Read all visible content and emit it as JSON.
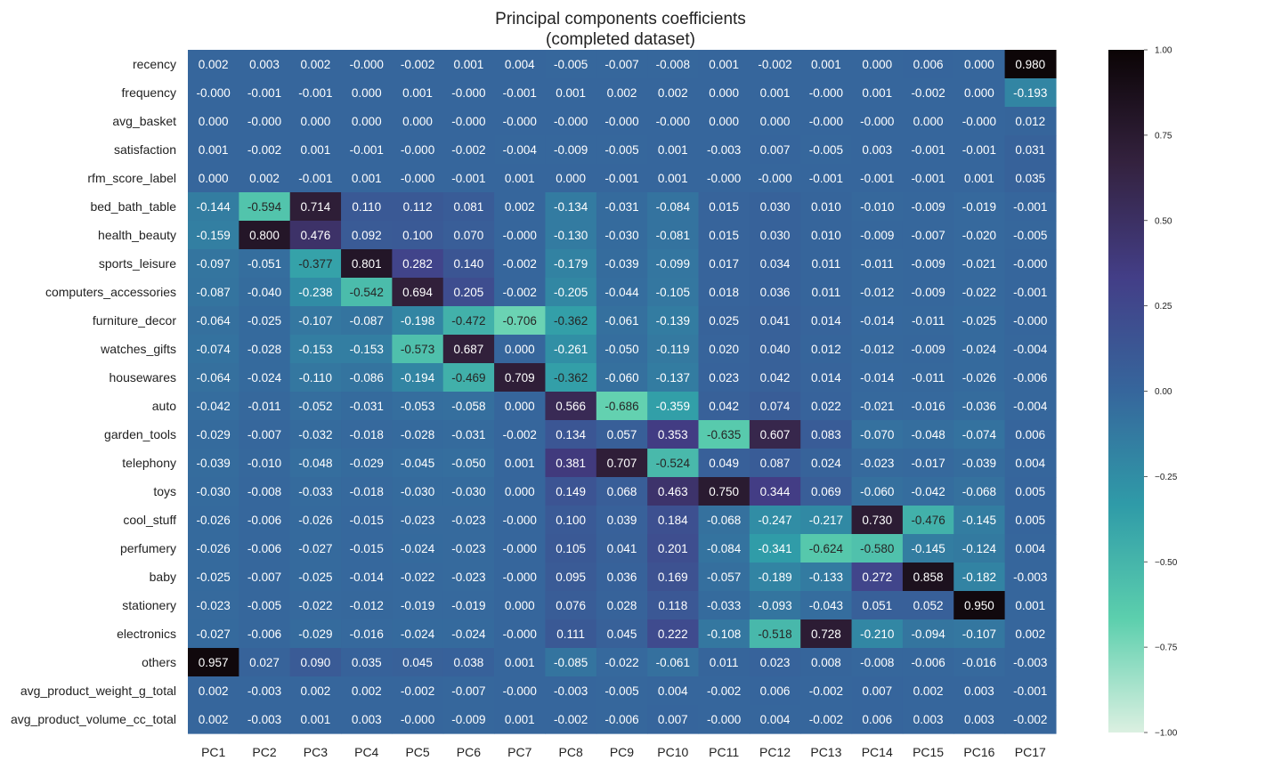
{
  "chart_data": {
    "type": "heatmap",
    "title": [
      "Principal components coefficients",
      "(completed dataset)"
    ],
    "columns": [
      "PC1",
      "PC2",
      "PC3",
      "PC4",
      "PC5",
      "PC6",
      "PC7",
      "PC8",
      "PC9",
      "PC10",
      "PC11",
      "PC12",
      "PC13",
      "PC14",
      "PC15",
      "PC16",
      "PC17"
    ],
    "rows": [
      "recency",
      "frequency",
      "avg_basket",
      "satisfaction",
      "rfm_score_label",
      "bed_bath_table",
      "health_beauty",
      "sports_leisure",
      "computers_accessories",
      "furniture_decor",
      "watches_gifts",
      "housewares",
      "auto",
      "garden_tools",
      "telephony",
      "toys",
      "cool_stuff",
      "perfumery",
      "baby",
      "stationery",
      "electronics",
      "others",
      "avg_product_weight_g_total",
      "avg_product_volume_cc_total"
    ],
    "values": [
      [
        0.002,
        0.003,
        0.002,
        -0.0,
        -0.002,
        0.001,
        0.004,
        -0.005,
        -0.007,
        -0.008,
        0.001,
        -0.002,
        0.001,
        0.0,
        0.006,
        0.0,
        0.98
      ],
      [
        -0.0,
        -0.001,
        -0.001,
        0.0,
        0.001,
        -0.0,
        -0.001,
        0.001,
        0.002,
        0.002,
        0.0,
        0.001,
        -0.0,
        0.001,
        -0.002,
        0.0,
        -0.193
      ],
      [
        0.0,
        -0.0,
        0.0,
        0.0,
        0.0,
        -0.0,
        -0.0,
        -0.0,
        -0.0,
        -0.0,
        0.0,
        0.0,
        -0.0,
        -0.0,
        0.0,
        -0.0,
        0.012
      ],
      [
        0.001,
        -0.002,
        0.001,
        -0.001,
        -0.0,
        -0.002,
        -0.004,
        -0.009,
        -0.005,
        0.001,
        -0.003,
        0.007,
        -0.005,
        0.003,
        -0.001,
        -0.001,
        0.031
      ],
      [
        0.0,
        0.002,
        -0.001,
        0.001,
        -0.0,
        -0.001,
        0.001,
        0.0,
        -0.001,
        0.001,
        -0.0,
        -0.0,
        -0.001,
        -0.001,
        -0.001,
        0.001,
        0.035
      ],
      [
        -0.144,
        -0.594,
        0.714,
        0.11,
        0.112,
        0.081,
        0.002,
        -0.134,
        -0.031,
        -0.084,
        0.015,
        0.03,
        0.01,
        -0.01,
        -0.009,
        -0.019,
        -0.001
      ],
      [
        -0.159,
        0.8,
        0.476,
        0.092,
        0.1,
        0.07,
        -0.0,
        -0.13,
        -0.03,
        -0.081,
        0.015,
        0.03,
        0.01,
        -0.009,
        -0.007,
        -0.02,
        -0.005
      ],
      [
        -0.097,
        -0.051,
        -0.377,
        0.801,
        0.282,
        0.14,
        -0.002,
        -0.179,
        -0.039,
        -0.099,
        0.017,
        0.034,
        0.011,
        -0.011,
        -0.009,
        -0.021,
        -0.0
      ],
      [
        -0.087,
        -0.04,
        -0.238,
        -0.542,
        0.694,
        0.205,
        -0.002,
        -0.205,
        -0.044,
        -0.105,
        0.018,
        0.036,
        0.011,
        -0.012,
        -0.009,
        -0.022,
        -0.001
      ],
      [
        -0.064,
        -0.025,
        -0.107,
        -0.087,
        -0.198,
        -0.472,
        -0.706,
        -0.362,
        -0.061,
        -0.139,
        0.025,
        0.041,
        0.014,
        -0.014,
        -0.011,
        -0.025,
        -0.0
      ],
      [
        -0.074,
        -0.028,
        -0.153,
        -0.153,
        -0.573,
        0.687,
        0.0,
        -0.261,
        -0.05,
        -0.119,
        0.02,
        0.04,
        0.012,
        -0.012,
        -0.009,
        -0.024,
        -0.004
      ],
      [
        -0.064,
        -0.024,
        -0.11,
        -0.086,
        -0.194,
        -0.469,
        0.709,
        -0.362,
        -0.06,
        -0.137,
        0.023,
        0.042,
        0.014,
        -0.014,
        -0.011,
        -0.026,
        -0.006
      ],
      [
        -0.042,
        -0.011,
        -0.052,
        -0.031,
        -0.053,
        -0.058,
        0.0,
        0.566,
        -0.686,
        -0.359,
        0.042,
        0.074,
        0.022,
        -0.021,
        -0.016,
        -0.036,
        -0.004
      ],
      [
        -0.029,
        -0.007,
        -0.032,
        -0.018,
        -0.028,
        -0.031,
        -0.002,
        0.134,
        0.057,
        0.353,
        -0.635,
        0.607,
        0.083,
        -0.07,
        -0.048,
        -0.074,
        0.006
      ],
      [
        -0.039,
        -0.01,
        -0.048,
        -0.029,
        -0.045,
        -0.05,
        0.001,
        0.381,
        0.707,
        -0.524,
        0.049,
        0.087,
        0.024,
        -0.023,
        -0.017,
        -0.039,
        0.004
      ],
      [
        -0.03,
        -0.008,
        -0.033,
        -0.018,
        -0.03,
        -0.03,
        0.0,
        0.149,
        0.068,
        0.463,
        0.75,
        0.344,
        0.069,
        -0.06,
        -0.042,
        -0.068,
        0.005
      ],
      [
        -0.026,
        -0.006,
        -0.026,
        -0.015,
        -0.023,
        -0.023,
        -0.0,
        0.1,
        0.039,
        0.184,
        -0.068,
        -0.247,
        -0.217,
        0.73,
        -0.476,
        -0.145,
        0.005
      ],
      [
        -0.026,
        -0.006,
        -0.027,
        -0.015,
        -0.024,
        -0.023,
        -0.0,
        0.105,
        0.041,
        0.201,
        -0.084,
        -0.341,
        -0.624,
        -0.58,
        -0.145,
        -0.124,
        0.004
      ],
      [
        -0.025,
        -0.007,
        -0.025,
        -0.014,
        -0.022,
        -0.023,
        -0.0,
        0.095,
        0.036,
        0.169,
        -0.057,
        -0.189,
        -0.133,
        0.272,
        0.858,
        -0.182,
        -0.003
      ],
      [
        -0.023,
        -0.005,
        -0.022,
        -0.012,
        -0.019,
        -0.019,
        0.0,
        0.076,
        0.028,
        0.118,
        -0.033,
        -0.093,
        -0.043,
        0.051,
        0.052,
        0.95,
        0.001
      ],
      [
        -0.027,
        -0.006,
        -0.029,
        -0.016,
        -0.024,
        -0.024,
        -0.0,
        0.111,
        0.045,
        0.222,
        -0.108,
        -0.518,
        0.728,
        -0.21,
        -0.094,
        -0.107,
        0.002
      ],
      [
        0.957,
        0.027,
        0.09,
        0.035,
        0.045,
        0.038,
        0.001,
        -0.085,
        -0.022,
        -0.061,
        0.011,
        0.023,
        0.008,
        -0.008,
        -0.006,
        -0.016,
        -0.003
      ],
      [
        0.002,
        -0.003,
        0.002,
        0.002,
        -0.002,
        -0.007,
        -0.0,
        -0.003,
        -0.005,
        0.004,
        -0.002,
        0.006,
        -0.002,
        0.007,
        0.002,
        0.003,
        -0.001
      ],
      [
        0.002,
        -0.003,
        0.001,
        0.003,
        -0.0,
        -0.009,
        0.001,
        -0.002,
        -0.006,
        0.007,
        -0.0,
        0.004,
        -0.002,
        0.006,
        0.003,
        0.003,
        -0.002
      ]
    ],
    "value_format": "%.3f",
    "color_range": [
      -1.0,
      1.0
    ],
    "colormap": "mako_r",
    "colormap_stops": [
      "#dbf0e1",
      "#5ccfad",
      "#2f9ba8",
      "#36669c",
      "#433e87",
      "#34223f",
      "#0b0405"
    ],
    "colorbar": {
      "ticks": [
        -1.0,
        -0.75,
        -0.5,
        -0.25,
        0.0,
        0.25,
        0.5,
        0.75,
        1.0
      ],
      "tick_labels": [
        "−1.00",
        "−0.75",
        "−0.50",
        "−0.25",
        "0.00",
        "0.25",
        "0.50",
        "0.75",
        "1.00"
      ],
      "placement": "right"
    },
    "grid": false
  }
}
